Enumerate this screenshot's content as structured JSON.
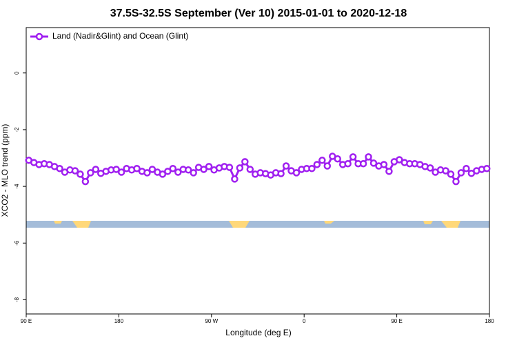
{
  "chart_data": {
    "type": "line",
    "title": "37.5S-32.5S September (Ver 10)   2015-01-01 to 2020-12-18",
    "x_label": "Longitude (deg E)",
    "y_label": "XCO2 - MLO trend (ppm)",
    "legend": "top-left",
    "xlim": [
      90,
      540
    ],
    "ylim": [
      -8.5,
      1.6
    ],
    "xticks": [
      {
        "value": 90,
        "label": "90 E"
      },
      180,
      {
        "value": 270,
        "label": "90 W"
      },
      {
        "value": 360,
        "label": "0"
      },
      {
        "value": 450,
        "label": "90 E"
      },
      {
        "value": 540,
        "label": "180"
      }
    ],
    "yticks": [
      0,
      -2,
      -4,
      -6,
      -8
    ],
    "x": [
      92.5,
      97.5,
      102.5,
      107.5,
      112.5,
      117.5,
      122.5,
      127.5,
      132.5,
      137.5,
      142.5,
      147.5,
      152.5,
      157.5,
      162.5,
      167.5,
      172.5,
      177.5,
      182.5,
      187.5,
      192.5,
      197.5,
      202.5,
      207.5,
      212.5,
      217.5,
      222.5,
      227.5,
      232.5,
      237.5,
      242.5,
      247.5,
      252.5,
      257.5,
      262.5,
      267.5,
      272.5,
      277.5,
      282.5,
      287.5,
      292.5,
      297.5,
      302.5,
      307.5,
      312.5,
      317.5,
      322.5,
      327.5,
      332.5,
      337.5,
      342.5,
      347.5,
      352.5,
      357.5,
      362.5,
      367.5,
      372.5,
      377.5,
      382.5,
      387.5,
      392.5,
      397.5,
      402.5,
      407.5,
      412.5,
      417.5,
      422.5,
      427.5,
      432.5,
      437.5,
      442.5,
      447.5,
      452.5,
      457.5,
      462.5,
      467.5,
      472.5,
      477.5,
      482.5,
      487.5,
      492.5,
      497.5,
      502.5,
      507.5,
      512.5,
      517.5,
      522.5,
      527.5,
      532.5,
      537.5
    ],
    "series": [
      {
        "name": "Land (Nadir&Glint) and Ocean (Glint)",
        "color": "#a020f0",
        "values": [
          -3.08,
          -3.16,
          -3.23,
          -3.2,
          -3.23,
          -3.3,
          -3.37,
          -3.5,
          -3.42,
          -3.45,
          -3.57,
          -3.83,
          -3.52,
          -3.4,
          -3.54,
          -3.47,
          -3.42,
          -3.4,
          -3.5,
          -3.37,
          -3.42,
          -3.37,
          -3.47,
          -3.52,
          -3.4,
          -3.5,
          -3.57,
          -3.47,
          -3.37,
          -3.5,
          -3.4,
          -3.42,
          -3.52,
          -3.33,
          -3.4,
          -3.3,
          -3.42,
          -3.35,
          -3.3,
          -3.33,
          -3.74,
          -3.35,
          -3.13,
          -3.4,
          -3.57,
          -3.52,
          -3.55,
          -3.6,
          -3.52,
          -3.55,
          -3.28,
          -3.45,
          -3.52,
          -3.4,
          -3.37,
          -3.37,
          -3.23,
          -3.08,
          -3.28,
          -2.94,
          -3.03,
          -3.23,
          -3.2,
          -2.96,
          -3.2,
          -3.2,
          -2.96,
          -3.18,
          -3.28,
          -3.23,
          -3.47,
          -3.13,
          -3.06,
          -3.16,
          -3.2,
          -3.2,
          -3.23,
          -3.3,
          -3.35,
          -3.5,
          -3.42,
          -3.45,
          -3.57,
          -3.83,
          -3.52,
          -3.37,
          -3.54,
          -3.45,
          -3.4,
          -3.37
        ]
      }
    ]
  }
}
